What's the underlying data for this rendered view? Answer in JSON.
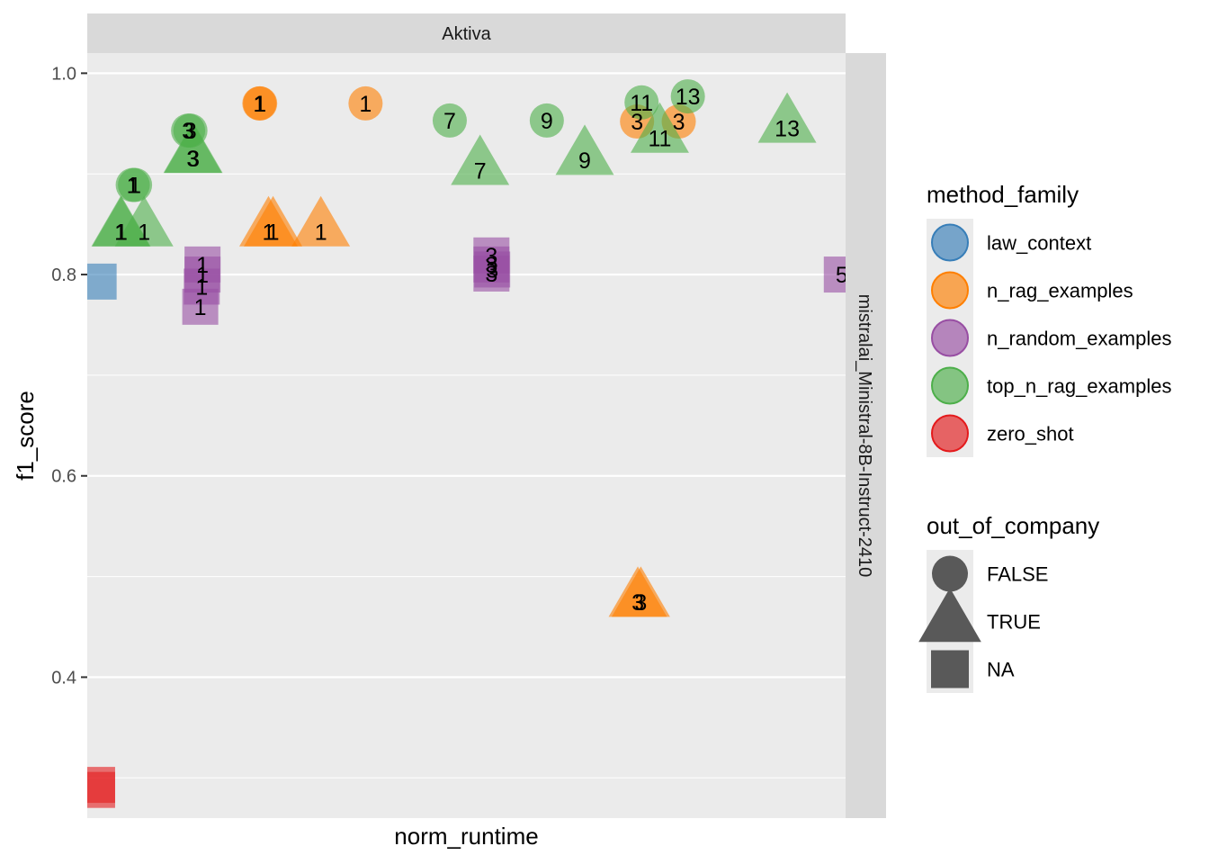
{
  "chart_data": {
    "type": "scatter",
    "xlabel": "norm_runtime",
    "ylabel": "f1_score",
    "ylim": [
      0.26,
      1.02
    ],
    "xlim": [
      0,
      1
    ],
    "y_ticks": [
      "0.4",
      "0.6",
      "0.8",
      "1.0"
    ],
    "y_tick_values": [
      0.4,
      0.6,
      0.8,
      1.0
    ],
    "grid": true,
    "facet_col_label": "Aktiva",
    "facet_row_label": "mistralai_Ministral-8B-Instruct-2410",
    "legend_position": "right",
    "legends": [
      {
        "title": "method_family",
        "items": [
          {
            "label": "law_context",
            "color": "#377EB8",
            "shape": "circle"
          },
          {
            "label": "n_rag_examples",
            "color": "#FF7F00",
            "shape": "circle"
          },
          {
            "label": "n_random_examples",
            "color": "#984EA3",
            "shape": "circle"
          },
          {
            "label": "top_n_rag_examples",
            "color": "#4DAF4A",
            "shape": "circle"
          },
          {
            "label": "zero_shot",
            "color": "#E41A1C",
            "shape": "circle"
          }
        ]
      },
      {
        "title": "out_of_company",
        "items": [
          {
            "label": "FALSE",
            "shape": "circle"
          },
          {
            "label": "TRUE",
            "shape": "triangle"
          },
          {
            "label": "NA",
            "shape": "square"
          }
        ]
      }
    ],
    "series": [
      {
        "name": "law_context",
        "color": "#377EB8",
        "points": [
          {
            "x": 0.015,
            "y": 0.793,
            "shape": "square",
            "label": ""
          }
        ]
      },
      {
        "name": "zero_shot",
        "color": "#E41A1C",
        "points": [
          {
            "x": 0.013,
            "y": 0.293,
            "shape": "square",
            "label": ""
          },
          {
            "x": 0.013,
            "y": 0.288,
            "shape": "square",
            "label": ""
          }
        ]
      },
      {
        "name": "n_rag_examples",
        "color": "#FF7F00",
        "points": [
          {
            "x": 0.227,
            "y": 0.97,
            "shape": "circle",
            "label": "1"
          },
          {
            "x": 0.228,
            "y": 0.97,
            "shape": "circle",
            "label": "1"
          },
          {
            "x": 0.367,
            "y": 0.97,
            "shape": "circle",
            "label": "1"
          },
          {
            "x": 0.239,
            "y": 0.847,
            "shape": "triangle",
            "label": "1"
          },
          {
            "x": 0.245,
            "y": 0.847,
            "shape": "triangle",
            "label": "1"
          },
          {
            "x": 0.308,
            "y": 0.847,
            "shape": "triangle",
            "label": "1"
          },
          {
            "x": 0.725,
            "y": 0.952,
            "shape": "circle",
            "label": "3"
          },
          {
            "x": 0.78,
            "y": 0.952,
            "shape": "circle",
            "label": "3"
          },
          {
            "x": 0.726,
            "y": 0.479,
            "shape": "triangle",
            "label": "3"
          },
          {
            "x": 0.73,
            "y": 0.479,
            "shape": "triangle",
            "label": "3"
          }
        ]
      },
      {
        "name": "n_random_examples",
        "color": "#984EA3",
        "points": [
          {
            "x": 0.152,
            "y": 0.81,
            "shape": "square",
            "label": "1"
          },
          {
            "x": 0.152,
            "y": 0.8,
            "shape": "square",
            "label": "1"
          },
          {
            "x": 0.151,
            "y": 0.788,
            "shape": "square",
            "label": "1"
          },
          {
            "x": 0.149,
            "y": 0.768,
            "shape": "square",
            "label": "1"
          },
          {
            "x": 0.533,
            "y": 0.819,
            "shape": "square",
            "label": "3"
          },
          {
            "x": 0.533,
            "y": 0.81,
            "shape": "square",
            "label": "3"
          },
          {
            "x": 0.534,
            "y": 0.805,
            "shape": "square",
            "label": "3"
          },
          {
            "x": 0.533,
            "y": 0.801,
            "shape": "square",
            "label": "3"
          },
          {
            "x": 0.995,
            "y": 0.8,
            "shape": "square",
            "label": "5"
          }
        ]
      },
      {
        "name": "top_n_rag_examples",
        "color": "#4DAF4A",
        "points": [
          {
            "x": 0.06,
            "y": 0.889,
            "shape": "circle",
            "label": "1"
          },
          {
            "x": 0.063,
            "y": 0.889,
            "shape": "circle",
            "label": "1"
          },
          {
            "x": 0.045,
            "y": 0.847,
            "shape": "triangle",
            "label": "1"
          },
          {
            "x": 0.075,
            "y": 0.847,
            "shape": "triangle",
            "label": "1"
          },
          {
            "x": 0.044,
            "y": 0.847,
            "shape": "triangle",
            "label": "1"
          },
          {
            "x": 0.133,
            "y": 0.943,
            "shape": "circle",
            "label": "3"
          },
          {
            "x": 0.136,
            "y": 0.943,
            "shape": "circle",
            "label": "3"
          },
          {
            "x": 0.139,
            "y": 0.92,
            "shape": "triangle",
            "label": "3"
          },
          {
            "x": 0.14,
            "y": 0.92,
            "shape": "triangle",
            "label": "3"
          },
          {
            "x": 0.478,
            "y": 0.953,
            "shape": "circle",
            "label": "7"
          },
          {
            "x": 0.518,
            "y": 0.908,
            "shape": "triangle",
            "label": "7"
          },
          {
            "x": 0.606,
            "y": 0.953,
            "shape": "circle",
            "label": "9"
          },
          {
            "x": 0.656,
            "y": 0.918,
            "shape": "triangle",
            "label": "9"
          },
          {
            "x": 0.731,
            "y": 0.971,
            "shape": "circle",
            "label": "11"
          },
          {
            "x": 0.755,
            "y": 0.94,
            "shape": "triangle",
            "label": "11"
          },
          {
            "x": 0.792,
            "y": 0.977,
            "shape": "circle",
            "label": "13"
          },
          {
            "x": 0.923,
            "y": 0.95,
            "shape": "triangle",
            "label": "13"
          }
        ]
      }
    ]
  }
}
